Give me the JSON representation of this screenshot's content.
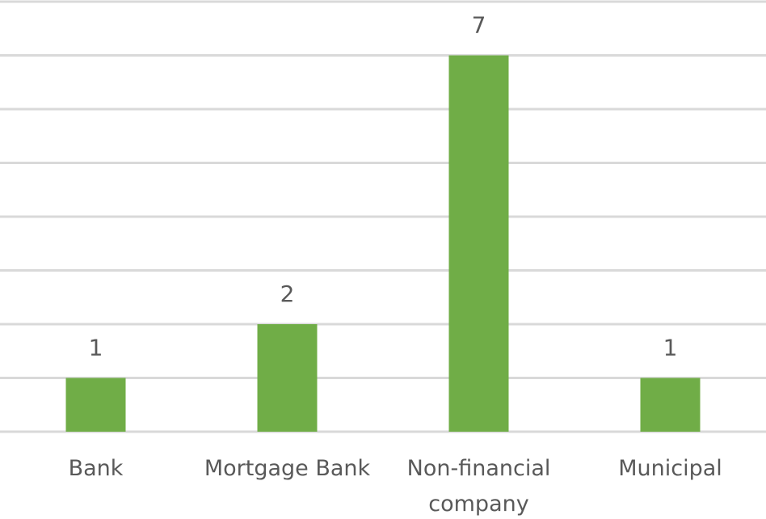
{
  "chart_data": {
    "type": "bar",
    "categories": [
      "Bank",
      "Mortgage Bank",
      "Non-financial company",
      "Municipal"
    ],
    "values": [
      1,
      2,
      7,
      1
    ],
    "color": "#70ad47",
    "ylim": [
      0,
      8
    ],
    "yticks": [
      0,
      1,
      2,
      3,
      4,
      5,
      6,
      7,
      8
    ],
    "grid": true
  }
}
